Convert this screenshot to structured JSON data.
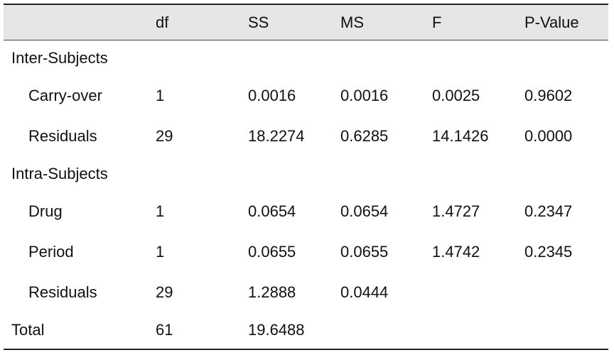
{
  "columns": {
    "label": "",
    "df": "df",
    "ss": "SS",
    "ms": "MS",
    "f": "F",
    "p": "P-Value"
  },
  "sections": {
    "inter": "Inter-Subjects",
    "intra": "Intra-Subjects"
  },
  "rows": {
    "carryover": {
      "label": "Carry-over",
      "df": "1",
      "ss": "0.0016",
      "ms": "0.0016",
      "f": "0.0025",
      "p": "0.9602"
    },
    "residuals1": {
      "label": "Residuals",
      "df": "29",
      "ss": "18.2274",
      "ms": "0.6285",
      "f": "14.1426",
      "p": "0.0000"
    },
    "drug": {
      "label": "Drug",
      "df": "1",
      "ss": "0.0654",
      "ms": "0.0654",
      "f": "1.4727",
      "p": "0.2347"
    },
    "period": {
      "label": "Period",
      "df": "1",
      "ss": "0.0655",
      "ms": "0.0655",
      "f": "1.4742",
      "p": "0.2345"
    },
    "residuals2": {
      "label": "Residuals",
      "df": "29",
      "ss": "1.2888",
      "ms": "0.0444",
      "f": "",
      "p": ""
    },
    "total": {
      "label": "Total",
      "df": "61",
      "ss": "19.6488",
      "ms": "",
      "f": "",
      "p": ""
    }
  },
  "colors": {
    "header_bg": "#e6e6e6",
    "rule": "#222222",
    "text": "#111111"
  }
}
